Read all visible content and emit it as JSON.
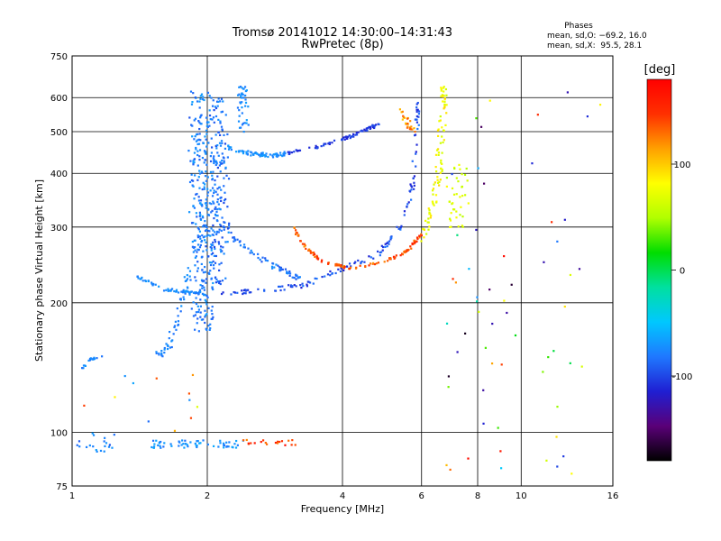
{
  "chart_data": {
    "type": "scatter",
    "title": "Tromsø 20141012 14:30:00–14:31:43",
    "subtitle": "RwPretec (8p)",
    "xlabel": "Frequency [MHz]",
    "ylabel": "Stationary phase Virtual Height [km]",
    "x_scale": "log",
    "y_scale": "log",
    "xlim": [
      1,
      16
    ],
    "ylim": [
      75,
      750
    ],
    "x_ticks": [
      1,
      2,
      4,
      6,
      8,
      10,
      16
    ],
    "y_ticks": [
      75,
      100,
      200,
      300,
      400,
      500,
      600,
      750
    ],
    "grid": true,
    "stats": {
      "heading": "Phases",
      "line_o": "mean, sd,O: −69.2, 16.0",
      "line_x": "mean, sd,X:  95.5, 28.1"
    },
    "colorbar": {
      "label": "[deg]",
      "ticks": [
        100,
        0,
        -100
      ],
      "range": [
        -180,
        180
      ],
      "colors": [
        "#000000",
        "#5a0078",
        "#1f1fd2",
        "#1f78ff",
        "#00c8ff",
        "#00e0a0",
        "#00dd00",
        "#b0ff00",
        "#ffff00",
        "#ffa000",
        "#ff3000",
        "#ff0000"
      ]
    },
    "traces": [
      {
        "type": "dense",
        "n": 280,
        "x": [
          1.85,
          2.05
        ],
        "y": [
          170,
          620
        ],
        "phase": [
          -95,
          -65
        ],
        "spread_x": 0.05
      },
      {
        "type": "dense",
        "n": 160,
        "x": [
          2.05,
          2.2
        ],
        "y": [
          220,
          600
        ],
        "phase": [
          -100,
          -70
        ],
        "spread_x": 0.04
      },
      {
        "type": "dense",
        "n": 40,
        "x": [
          2.35,
          2.45
        ],
        "y": [
          500,
          640
        ],
        "phase": [
          -85,
          -65
        ],
        "spread_x": 0.02
      },
      {
        "type": "curve",
        "n": 90,
        "pts": [
          [
            1.55,
            150
          ],
          [
            1.65,
            160
          ],
          [
            1.75,
            200
          ],
          [
            1.85,
            250
          ],
          [
            2.0,
            320
          ],
          [
            2.1,
            450
          ]
        ],
        "phase": [
          -85,
          -70
        ],
        "jitter": 0.04
      },
      {
        "type": "curve",
        "n": 70,
        "pts": [
          [
            2.2,
            460
          ],
          [
            2.5,
            445
          ],
          [
            2.8,
            440
          ],
          [
            3.0,
            445
          ]
        ],
        "phase": [
          -80,
          -65
        ],
        "jitter": 0.02
      },
      {
        "type": "curve",
        "n": 80,
        "pts": [
          [
            3.0,
            445
          ],
          [
            3.5,
            460
          ],
          [
            4.0,
            480
          ],
          [
            4.5,
            505
          ],
          [
            4.8,
            520
          ]
        ],
        "phase": [
          -115,
          -95
        ],
        "jitter": 0.015
      },
      {
        "type": "curve",
        "n": 55,
        "pts": [
          [
            1.4,
            230
          ],
          [
            1.6,
            215
          ],
          [
            1.8,
            212
          ],
          [
            2.0,
            210
          ]
        ],
        "phase": [
          -80,
          -65
        ],
        "jitter": 0.015
      },
      {
        "type": "curve",
        "n": 140,
        "pts": [
          [
            2.1,
            210
          ],
          [
            2.8,
            215
          ],
          [
            3.3,
            220
          ],
          [
            4.0,
            240
          ],
          [
            4.8,
            260
          ],
          [
            5.3,
            290
          ],
          [
            5.7,
            360
          ],
          [
            5.85,
            480
          ],
          [
            5.9,
            580
          ]
        ],
        "phase": [
          -115,
          -80
        ],
        "jitter": 0.025
      },
      {
        "type": "curve",
        "n": 70,
        "pts": [
          [
            2.0,
            330
          ],
          [
            2.3,
            280
          ],
          [
            2.6,
            255
          ],
          [
            2.9,
            240
          ],
          [
            3.2,
            228
          ]
        ],
        "phase": [
          -95,
          -70
        ],
        "jitter": 0.03
      },
      {
        "type": "curve",
        "n": 110,
        "pts": [
          [
            3.1,
            300
          ],
          [
            3.3,
            270
          ],
          [
            3.6,
            250
          ],
          [
            4.2,
            240
          ],
          [
            5.0,
            250
          ],
          [
            5.6,
            265
          ],
          [
            6.0,
            290
          ]
        ],
        "phase": [
          120,
          160
        ],
        "jitter": 0.012
      },
      {
        "type": "curve",
        "n": 90,
        "pts": [
          [
            6.0,
            280
          ],
          [
            6.3,
            320
          ],
          [
            6.5,
            380
          ],
          [
            6.6,
            450
          ],
          [
            6.7,
            560
          ],
          [
            6.75,
            630
          ]
        ],
        "phase": [
          60,
          95
        ],
        "jitter": 0.04
      },
      {
        "type": "dense",
        "n": 40,
        "x": [
          6.8,
          7.6
        ],
        "y": [
          300,
          420
        ],
        "phase": [
          50,
          85
        ],
        "spread_x": 0.03
      },
      {
        "type": "curve",
        "n": 25,
        "pts": [
          [
            5.4,
            560
          ],
          [
            5.6,
            520
          ],
          [
            5.8,
            500
          ]
        ],
        "phase": [
          100,
          140
        ],
        "jitter": 0.03
      },
      {
        "type": "dense",
        "n": 60,
        "x": [
          1.5,
          2.4
        ],
        "y": [
          92,
          96
        ],
        "phase": [
          -85,
          -60
        ],
        "spread_x": 0.02
      },
      {
        "type": "dense",
        "n": 20,
        "x": [
          2.4,
          3.2
        ],
        "y": [
          93,
          96
        ],
        "phase": [
          120,
          175
        ],
        "spread_x": 0.02
      },
      {
        "type": "dense",
        "n": 20,
        "x": [
          1.02,
          1.25
        ],
        "y": [
          90,
          100
        ],
        "phase": [
          -100,
          -65
        ],
        "spread_x": 0.02
      },
      {
        "type": "curve",
        "n": 18,
        "pts": [
          [
            1.05,
            140
          ],
          [
            1.1,
            148
          ],
          [
            1.17,
            150
          ]
        ],
        "phase": [
          -85,
          -65
        ],
        "jitter": 0.01
      },
      {
        "type": "sparse",
        "n": 60,
        "x": [
          6.8,
          15.0
        ],
        "y": [
          78,
          650
        ],
        "phase": [
          -180,
          180
        ]
      },
      {
        "type": "sparse",
        "n": 12,
        "x": [
          1.05,
          1.9
        ],
        "y": [
          100,
          140
        ],
        "phase": [
          -90,
          160
        ]
      }
    ]
  }
}
